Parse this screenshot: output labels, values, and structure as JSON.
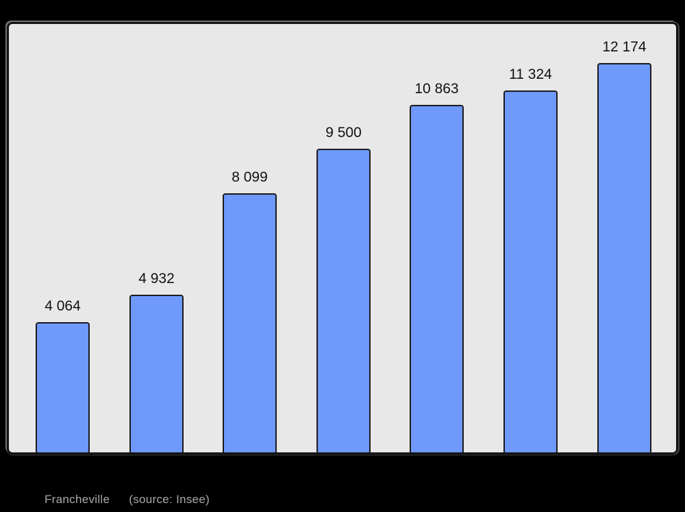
{
  "chart_data": {
    "type": "bar",
    "values": [
      4064,
      4932,
      8099,
      9500,
      10863,
      11324,
      12174
    ],
    "labels": [
      "4 064",
      "4 932",
      "8 099",
      "9 500",
      "10 863",
      "11 324",
      "12 174"
    ],
    "title": "",
    "xlabel": "",
    "ylabel": "",
    "ylim": [
      0,
      13390
    ],
    "grid": false,
    "legend": "none",
    "bar_fill": "#6f99fb",
    "bar_border": "#1a1a1a",
    "plot_background": "#e8e8e8",
    "page_background": "#000000"
  },
  "caption": {
    "title": "Francheville",
    "source": "(source: Insee)"
  }
}
